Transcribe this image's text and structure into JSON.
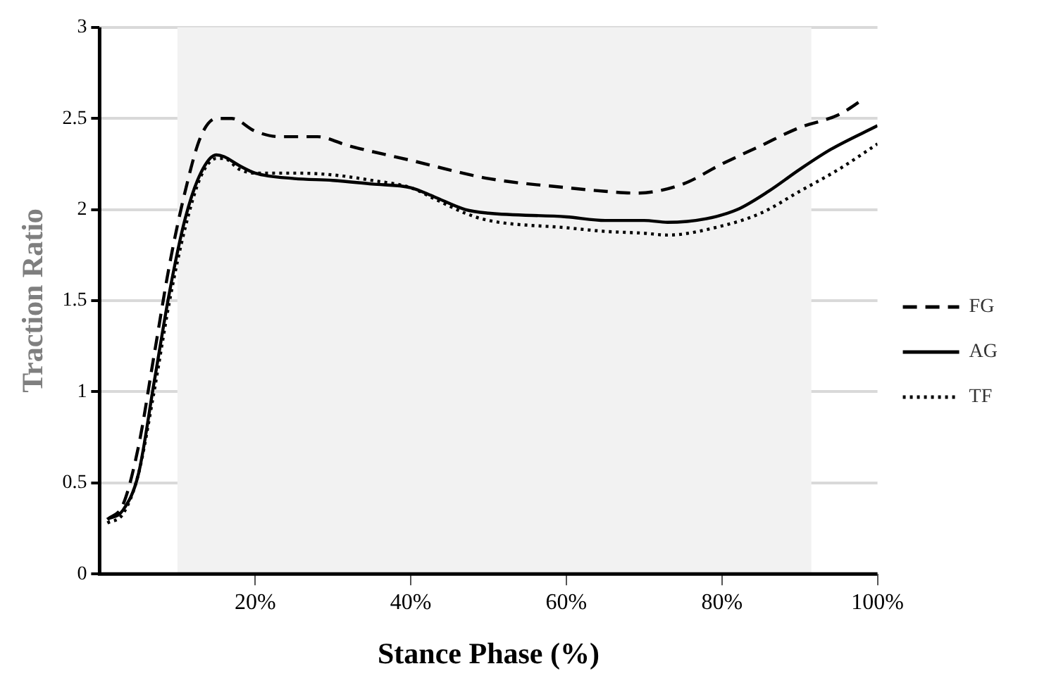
{
  "chart_data": {
    "type": "line",
    "xlabel": "Stance Phase (%)",
    "ylabel": "Traction Ratio",
    "xlim": [
      0,
      100
    ],
    "xticks": [
      {
        "value": 20,
        "label": "20%"
      },
      {
        "value": 40,
        "label": "40%"
      },
      {
        "value": 60,
        "label": "60%"
      },
      {
        "value": 80,
        "label": "80%"
      },
      {
        "value": 100,
        "label": "100%"
      }
    ],
    "ylim": [
      0,
      3
    ],
    "yticks": [
      0,
      0.5,
      1,
      1.5,
      2,
      2.5,
      3
    ],
    "grid": "y",
    "legend": "right",
    "marker": "none",
    "bands": [
      {
        "axis": "x",
        "from": 10,
        "to": 91.5,
        "color": "#f2f2f2"
      }
    ],
    "series": [
      {
        "name": "FG",
        "color": "#000000",
        "line_style": "dashed",
        "x": [
          1,
          3,
          5,
          7,
          9,
          11,
          13,
          15,
          17,
          20,
          23,
          28,
          32,
          40,
          50,
          60,
          65,
          69,
          75,
          80,
          85,
          90,
          95,
          98
        ],
        "values": [
          0.3,
          0.38,
          0.7,
          1.2,
          1.7,
          2.1,
          2.4,
          2.5,
          2.5,
          2.43,
          2.4,
          2.4,
          2.35,
          2.27,
          2.17,
          2.12,
          2.1,
          2.09,
          2.14,
          2.25,
          2.35,
          2.45,
          2.52,
          2.6
        ]
      },
      {
        "name": "AG",
        "color": "#000000",
        "line_style": "solid",
        "x": [
          1,
          3,
          5,
          7,
          9,
          11,
          13,
          15,
          16,
          18,
          20,
          25,
          30,
          35,
          40,
          43,
          47,
          50,
          60,
          65,
          70,
          73,
          78,
          82,
          86,
          90,
          94,
          100
        ],
        "values": [
          0.3,
          0.35,
          0.55,
          1.05,
          1.55,
          1.95,
          2.2,
          2.3,
          2.29,
          2.24,
          2.2,
          2.17,
          2.16,
          2.14,
          2.12,
          2.07,
          2.0,
          1.98,
          1.96,
          1.94,
          1.94,
          1.93,
          1.95,
          2.0,
          2.1,
          2.22,
          2.33,
          2.46
        ]
      },
      {
        "name": "TF",
        "color": "#000000",
        "line_style": "dotted",
        "x": [
          1,
          3,
          5,
          7,
          9,
          11,
          13,
          15,
          16,
          18,
          20,
          25,
          30,
          35,
          40,
          43,
          47,
          50,
          60,
          65,
          70,
          73,
          80,
          85,
          90,
          95,
          100
        ],
        "values": [
          0.28,
          0.33,
          0.55,
          1.0,
          1.5,
          1.9,
          2.18,
          2.28,
          2.28,
          2.22,
          2.2,
          2.2,
          2.19,
          2.16,
          2.12,
          2.06,
          1.98,
          1.94,
          1.9,
          1.88,
          1.87,
          1.86,
          1.91,
          1.98,
          2.1,
          2.22,
          2.36
        ]
      }
    ]
  }
}
